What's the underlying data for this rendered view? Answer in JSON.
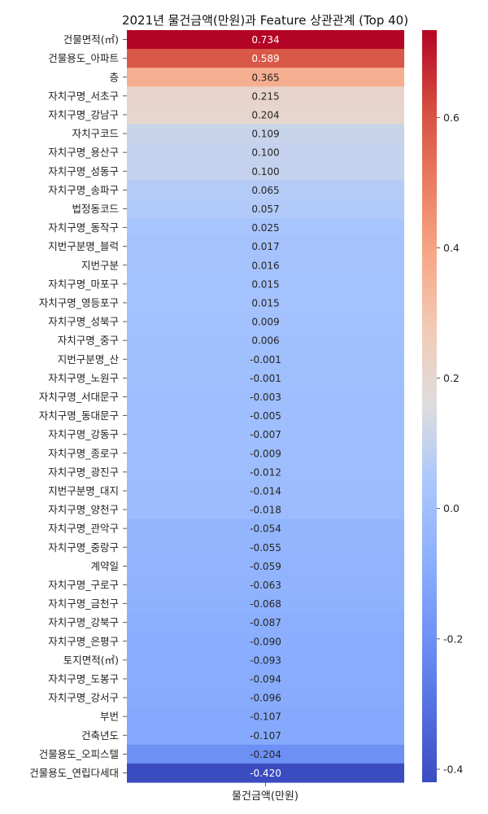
{
  "chart_data": {
    "type": "heatmap",
    "title": "2021년 물건금액(만원)과 Feature 상관관계 (Top 40)",
    "xlabel": "",
    "ylabel": "",
    "column": "물건금액(만원)",
    "colormap": "coolwarm",
    "value_range": [
      -0.42,
      0.734
    ],
    "annotation_format": "0.000",
    "colorbar_ticks": [
      -0.4,
      -0.2,
      0.0,
      0.2,
      0.4,
      0.6
    ],
    "rows": [
      {
        "label": "건물면적(㎡)",
        "value": 0.734
      },
      {
        "label": "건물용도_아파트",
        "value": 0.589
      },
      {
        "label": "층",
        "value": 0.365
      },
      {
        "label": "자치구명_서초구",
        "value": 0.215
      },
      {
        "label": "자치구명_강남구",
        "value": 0.204
      },
      {
        "label": "자치구코드",
        "value": 0.109
      },
      {
        "label": "자치구명_용산구",
        "value": 0.1
      },
      {
        "label": "자치구명_성동구",
        "value": 0.1
      },
      {
        "label": "자치구명_송파구",
        "value": 0.065
      },
      {
        "label": "법정동코드",
        "value": 0.057
      },
      {
        "label": "자치구명_동작구",
        "value": 0.025
      },
      {
        "label": "지번구분명_블럭",
        "value": 0.017
      },
      {
        "label": "지번구분",
        "value": 0.016
      },
      {
        "label": "자치구명_마포구",
        "value": 0.015
      },
      {
        "label": "자치구명_영등포구",
        "value": 0.015
      },
      {
        "label": "자치구명_성북구",
        "value": 0.009
      },
      {
        "label": "자치구명_중구",
        "value": 0.006
      },
      {
        "label": "지번구분명_산",
        "value": -0.001
      },
      {
        "label": "자치구명_노원구",
        "value": -0.001
      },
      {
        "label": "자치구명_서대문구",
        "value": -0.003
      },
      {
        "label": "자치구명_동대문구",
        "value": -0.005
      },
      {
        "label": "자치구명_강동구",
        "value": -0.007
      },
      {
        "label": "자치구명_종로구",
        "value": -0.009
      },
      {
        "label": "자치구명_광진구",
        "value": -0.012
      },
      {
        "label": "지번구분명_대지",
        "value": -0.014
      },
      {
        "label": "자치구명_양천구",
        "value": -0.018
      },
      {
        "label": "자치구명_관악구",
        "value": -0.054
      },
      {
        "label": "자치구명_중랑구",
        "value": -0.055
      },
      {
        "label": "계약일",
        "value": -0.059
      },
      {
        "label": "자치구명_구로구",
        "value": -0.063
      },
      {
        "label": "자치구명_금천구",
        "value": -0.068
      },
      {
        "label": "자치구명_강북구",
        "value": -0.087
      },
      {
        "label": "자치구명_은평구",
        "value": -0.09
      },
      {
        "label": "토지면적(㎡)",
        "value": -0.093
      },
      {
        "label": "자치구명_도봉구",
        "value": -0.094
      },
      {
        "label": "자치구명_강서구",
        "value": -0.096
      },
      {
        "label": "부번",
        "value": -0.107
      },
      {
        "label": "건축년도",
        "value": -0.107
      },
      {
        "label": "건물용도_오피스텔",
        "value": -0.204
      },
      {
        "label": "건물용도_연립다세대",
        "value": -0.42
      }
    ]
  }
}
